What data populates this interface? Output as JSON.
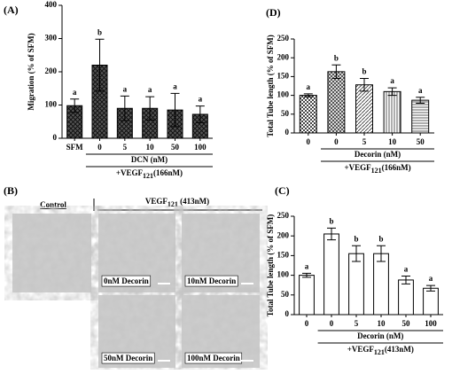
{
  "chart_data": [
    {
      "type": "bar",
      "panel": "(A)",
      "ylabel": "Migration (% of SFM)",
      "categories": [
        "SFM",
        "0",
        "5",
        "10",
        "50",
        "100"
      ],
      "values": [
        98,
        220,
        90,
        90,
        85,
        72
      ],
      "errors": [
        20,
        78,
        37,
        35,
        50,
        25
      ],
      "letters": [
        "a",
        "b",
        "a",
        "a",
        "a",
        "a"
      ],
      "fills": [
        "crosshatch",
        "crosshatch",
        "crosshatch",
        "crosshatch",
        "crosshatch",
        "crosshatch"
      ],
      "group_label": "DCN (nM)",
      "vegf_label": {
        "text": "+VEGF",
        "sub": "121",
        "conc": "(166nM)"
      },
      "ylim": [
        0,
        400
      ],
      "yticks": [
        0,
        100,
        200,
        300,
        400
      ]
    },
    {
      "type": "bar",
      "panel": "(D)",
      "ylabel": "Total Tube length (% of SFM)",
      "categories": [
        "0",
        "0",
        "5",
        "10",
        "50"
      ],
      "values": [
        100,
        163,
        128,
        110,
        87
      ],
      "errors": [
        4,
        18,
        17,
        10,
        8
      ],
      "letters": [
        "a",
        "b",
        "b",
        "a",
        "a"
      ],
      "fills": [
        "checker",
        "grid",
        "diagonal",
        "vertical",
        "horizontal"
      ],
      "group_label": "Decorin (nM)",
      "vegf_label": {
        "text": "+VEGF",
        "sub": "121",
        "conc": "(166nM)"
      },
      "ylim": [
        0,
        250
      ],
      "yticks": [
        0,
        50,
        100,
        150,
        200,
        250
      ]
    },
    {
      "type": "bar",
      "panel": "(C)",
      "ylabel": "Total Tube length (% of SFM)",
      "categories": [
        "0",
        "0",
        "5",
        "10",
        "50",
        "100"
      ],
      "values": [
        100,
        205,
        155,
        155,
        88,
        67
      ],
      "errors": [
        5,
        15,
        20,
        20,
        10,
        7
      ],
      "letters": [
        "a",
        "b",
        "b",
        "b",
        "a",
        "a"
      ],
      "fills": [
        "white",
        "white",
        "white",
        "white",
        "white",
        "white"
      ],
      "group_label": "Decorin (nM)",
      "vegf_label": {
        "text": "+VEGF",
        "sub": "121",
        "conc": "(413nM)"
      },
      "ylim": [
        0,
        250
      ],
      "yticks": [
        0,
        50,
        100,
        150,
        200,
        250
      ]
    }
  ],
  "panel_b": {
    "panel": "(B)",
    "control": "Control",
    "vegf_header": {
      "text": "VEGF",
      "sub": "121",
      "conc": " (413nM)"
    },
    "images": [
      "0nM Decorin",
      "10nM Decorin",
      "50nM Decorin",
      "100nM Decorin"
    ]
  }
}
